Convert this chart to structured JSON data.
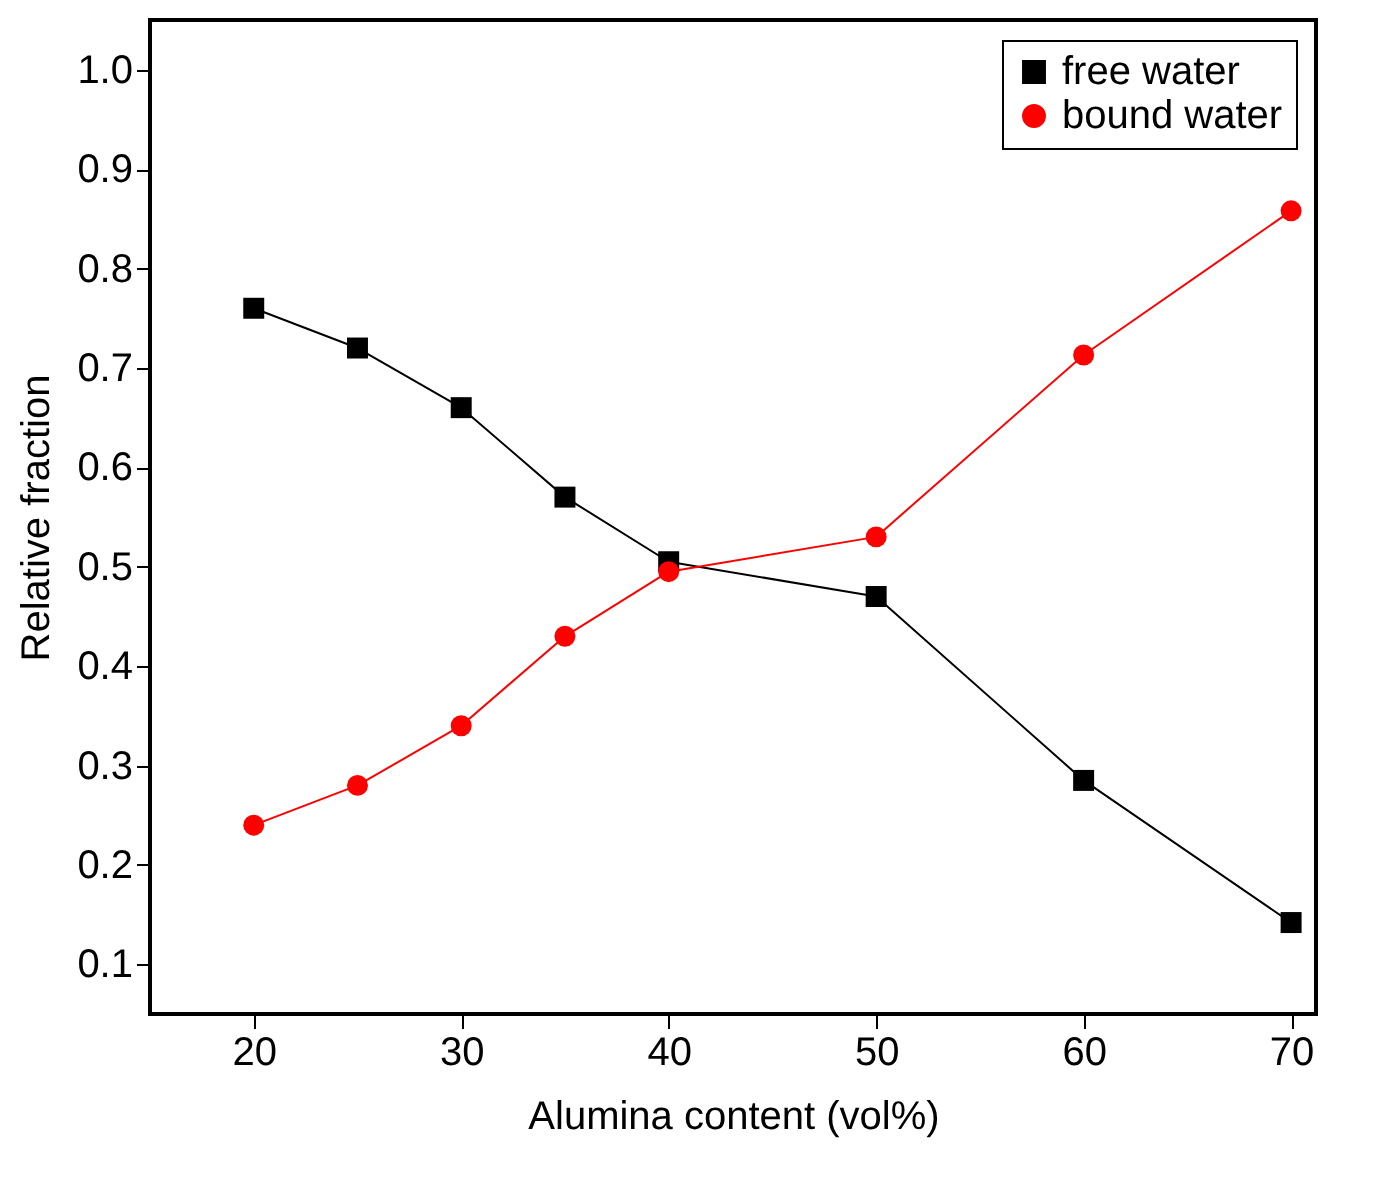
{
  "chart_data": {
    "type": "line",
    "xlabel": "Alumina content (vol%)",
    "ylabel": "Relative fraction",
    "x": [
      20,
      25,
      30,
      35,
      40,
      50,
      60,
      70
    ],
    "series": [
      {
        "name": "free water",
        "color": "#000000",
        "marker": "square",
        "values": [
          0.76,
          0.72,
          0.66,
          0.57,
          0.505,
          0.47,
          0.285,
          0.142
        ]
      },
      {
        "name": "bound water",
        "color": "#ff0000",
        "marker": "circle",
        "values": [
          0.24,
          0.28,
          0.34,
          0.43,
          0.495,
          0.53,
          0.713,
          0.858
        ]
      }
    ],
    "xlim": [
      15,
      71.2
    ],
    "xticks": [
      20,
      30,
      40,
      50,
      60,
      70
    ],
    "ylim": [
      0.05,
      1.05
    ],
    "yticks": [
      0.1,
      0.2,
      0.3,
      0.4,
      0.5,
      0.6,
      0.7,
      0.8,
      0.9,
      {
        "value": 1,
        "label": "1.0"
      }
    ],
    "grid": false,
    "legend": "top right"
  }
}
